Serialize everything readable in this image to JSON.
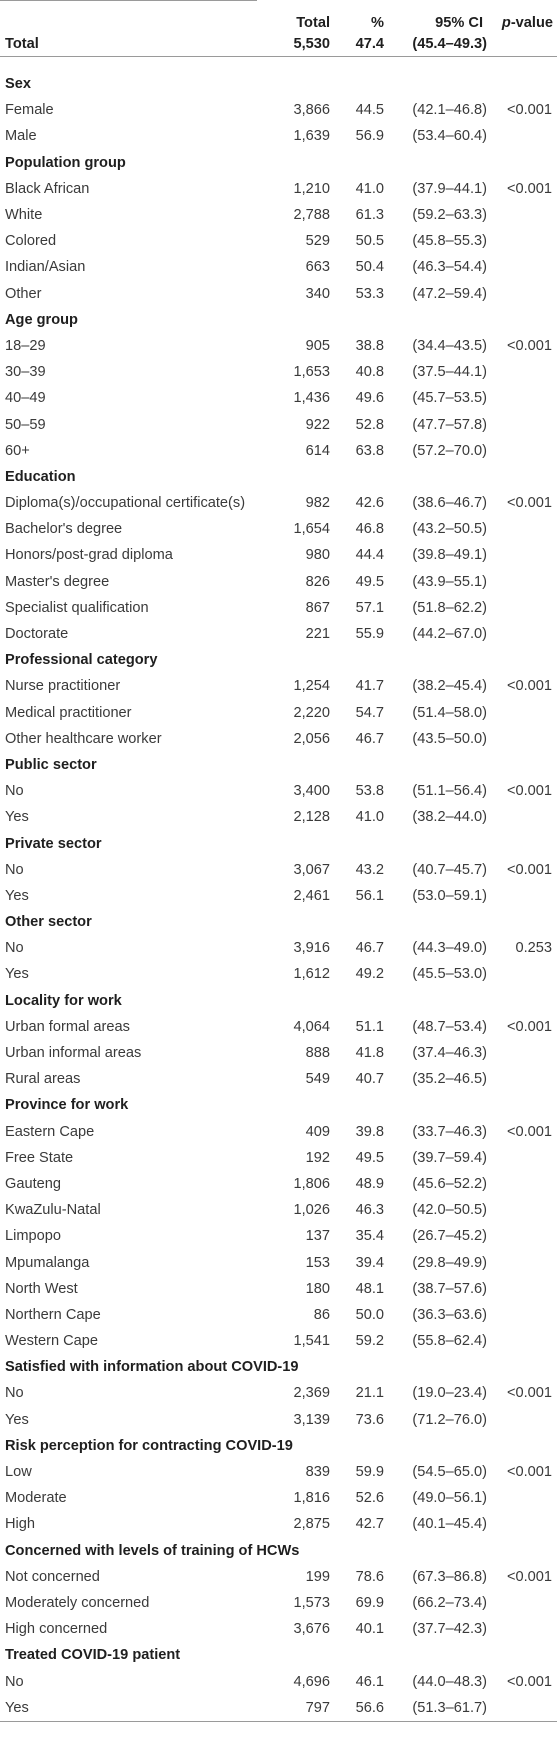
{
  "header": {
    "col_total": "Total",
    "col_pct": "%",
    "col_ci": "95% CI",
    "col_p_italic": "p",
    "col_p_rest": "-value"
  },
  "overall": {
    "label": "Total",
    "total": "5,530",
    "pct": "47.4",
    "ci": "(45.4–49.3)"
  },
  "groups": [
    {
      "title": "Sex",
      "rows": [
        {
          "label": "Female",
          "total": "3,866",
          "pct": "44.5",
          "ci": "(42.1–46.8)",
          "p": "<0.001"
        },
        {
          "label": "Male",
          "total": "1,639",
          "pct": "56.9",
          "ci": "(53.4–60.4)",
          "p": ""
        }
      ]
    },
    {
      "title": "Population group",
      "rows": [
        {
          "label": "Black African",
          "total": "1,210",
          "pct": "41.0",
          "ci": "(37.9–44.1)",
          "p": "<0.001"
        },
        {
          "label": "White",
          "total": "2,788",
          "pct": "61.3",
          "ci": "(59.2–63.3)",
          "p": ""
        },
        {
          "label": "Colored",
          "total": "529",
          "pct": "50.5",
          "ci": "(45.8–55.3)",
          "p": ""
        },
        {
          "label": "Indian/Asian",
          "total": "663",
          "pct": "50.4",
          "ci": "(46.3–54.4)",
          "p": ""
        },
        {
          "label": "Other",
          "total": "340",
          "pct": "53.3",
          "ci": "(47.2–59.4)",
          "p": ""
        }
      ]
    },
    {
      "title": "Age group",
      "rows": [
        {
          "label": "18–29",
          "total": "905",
          "pct": "38.8",
          "ci": "(34.4–43.5)",
          "p": "<0.001"
        },
        {
          "label": "30–39",
          "total": "1,653",
          "pct": "40.8",
          "ci": "(37.5–44.1)",
          "p": ""
        },
        {
          "label": "40–49",
          "total": "1,436",
          "pct": "49.6",
          "ci": "(45.7–53.5)",
          "p": ""
        },
        {
          "label": "50–59",
          "total": "922",
          "pct": "52.8",
          "ci": "(47.7–57.8)",
          "p": ""
        },
        {
          "label": "60+",
          "total": "614",
          "pct": "63.8",
          "ci": "(57.2–70.0)",
          "p": ""
        }
      ]
    },
    {
      "title": "Education",
      "rows": [
        {
          "label": "Diploma(s)/occupational certificate(s)",
          "total": "982",
          "pct": "42.6",
          "ci": "(38.6–46.7)",
          "p": "<0.001"
        },
        {
          "label": "Bachelor's degree",
          "total": "1,654",
          "pct": "46.8",
          "ci": "(43.2–50.5)",
          "p": ""
        },
        {
          "label": "Honors/post-grad diploma",
          "total": "980",
          "pct": "44.4",
          "ci": "(39.8–49.1)",
          "p": ""
        },
        {
          "label": "Master's degree",
          "total": "826",
          "pct": "49.5",
          "ci": "(43.9–55.1)",
          "p": ""
        },
        {
          "label": "Specialist qualification",
          "total": "867",
          "pct": "57.1",
          "ci": "(51.8–62.2)",
          "p": ""
        },
        {
          "label": "Doctorate",
          "total": "221",
          "pct": "55.9",
          "ci": "(44.2–67.0)",
          "p": ""
        }
      ]
    },
    {
      "title": "Professional category",
      "rows": [
        {
          "label": "Nurse practitioner",
          "total": "1,254",
          "pct": "41.7",
          "ci": "(38.2–45.4)",
          "p": "<0.001"
        },
        {
          "label": "Medical practitioner",
          "total": "2,220",
          "pct": "54.7",
          "ci": "(51.4–58.0)",
          "p": ""
        },
        {
          "label": "Other healthcare worker",
          "total": "2,056",
          "pct": "46.7",
          "ci": "(43.5–50.0)",
          "p": ""
        }
      ]
    },
    {
      "title": "Public sector",
      "rows": [
        {
          "label": "No",
          "total": "3,400",
          "pct": "53.8",
          "ci": "(51.1–56.4)",
          "p": "<0.001"
        },
        {
          "label": "Yes",
          "total": "2,128",
          "pct": "41.0",
          "ci": "(38.2–44.0)",
          "p": ""
        }
      ]
    },
    {
      "title": "Private sector",
      "rows": [
        {
          "label": "No",
          "total": "3,067",
          "pct": "43.2",
          "ci": "(40.7–45.7)",
          "p": "<0.001"
        },
        {
          "label": "Yes",
          "total": "2,461",
          "pct": "56.1",
          "ci": "(53.0–59.1)",
          "p": ""
        }
      ]
    },
    {
      "title": "Other sector",
      "rows": [
        {
          "label": "No",
          "total": "3,916",
          "pct": "46.7",
          "ci": "(44.3–49.0)",
          "p": "0.253"
        },
        {
          "label": "Yes",
          "total": "1,612",
          "pct": "49.2",
          "ci": "(45.5–53.0)",
          "p": ""
        }
      ]
    },
    {
      "title": "Locality for work",
      "rows": [
        {
          "label": "Urban formal areas",
          "total": "4,064",
          "pct": "51.1",
          "ci": "(48.7–53.4)",
          "p": "<0.001"
        },
        {
          "label": "Urban informal areas",
          "total": "888",
          "pct": "41.8",
          "ci": "(37.4–46.3)",
          "p": ""
        },
        {
          "label": "Rural areas",
          "total": "549",
          "pct": "40.7",
          "ci": "(35.2–46.5)",
          "p": ""
        }
      ]
    },
    {
      "title": "Province for work",
      "rows": [
        {
          "label": "Eastern Cape",
          "total": "409",
          "pct": "39.8",
          "ci": "(33.7–46.3)",
          "p": "<0.001"
        },
        {
          "label": "Free State",
          "total": "192",
          "pct": "49.5",
          "ci": "(39.7–59.4)",
          "p": ""
        },
        {
          "label": "Gauteng",
          "total": "1,806",
          "pct": "48.9",
          "ci": "(45.6–52.2)",
          "p": ""
        },
        {
          "label": "KwaZulu-Natal",
          "total": "1,026",
          "pct": "46.3",
          "ci": "(42.0–50.5)",
          "p": ""
        },
        {
          "label": "Limpopo",
          "total": "137",
          "pct": "35.4",
          "ci": "(26.7–45.2)",
          "p": ""
        },
        {
          "label": "Mpumalanga",
          "total": "153",
          "pct": "39.4",
          "ci": "(29.8–49.9)",
          "p": ""
        },
        {
          "label": "North West",
          "total": "180",
          "pct": "48.1",
          "ci": "(38.7–57.6)",
          "p": ""
        },
        {
          "label": "Northern Cape",
          "total": "86",
          "pct": "50.0",
          "ci": "(36.3–63.6)",
          "p": ""
        },
        {
          "label": "Western Cape",
          "total": "1,541",
          "pct": "59.2",
          "ci": "(55.8–62.4)",
          "p": ""
        }
      ]
    },
    {
      "title": "Satisfied with information about COVID-19",
      "rows": [
        {
          "label": "No",
          "total": "2,369",
          "pct": "21.1",
          "ci": "(19.0–23.4)",
          "p": "<0.001"
        },
        {
          "label": "Yes",
          "total": "3,139",
          "pct": "73.6",
          "ci": "(71.2–76.0)",
          "p": ""
        }
      ]
    },
    {
      "title": "Risk perception for contracting COVID-19",
      "rows": [
        {
          "label": "Low",
          "total": "839",
          "pct": "59.9",
          "ci": "(54.5–65.0)",
          "p": "<0.001"
        },
        {
          "label": "Moderate",
          "total": "1,816",
          "pct": "52.6",
          "ci": "(49.0–56.1)",
          "p": ""
        },
        {
          "label": "High",
          "total": "2,875",
          "pct": "42.7",
          "ci": "(40.1–45.4)",
          "p": ""
        }
      ]
    },
    {
      "title": "Concerned with levels of training of HCWs",
      "rows": [
        {
          "label": "Not concerned",
          "total": "199",
          "pct": "78.6",
          "ci": "(67.3–86.8)",
          "p": "<0.001"
        },
        {
          "label": "Moderately concerned",
          "total": "1,573",
          "pct": "69.9",
          "ci": "(66.2–73.4)",
          "p": ""
        },
        {
          "label": "High concerned",
          "total": "3,676",
          "pct": "40.1",
          "ci": "(37.7–42.3)",
          "p": ""
        }
      ]
    },
    {
      "title": "Treated COVID-19 patient",
      "rows": [
        {
          "label": "No",
          "total": "4,696",
          "pct": "46.1",
          "ci": "(44.0–48.3)",
          "p": "<0.001"
        },
        {
          "label": "Yes",
          "total": "797",
          "pct": "56.6",
          "ci": "(51.3–61.7)",
          "p": ""
        }
      ]
    }
  ]
}
